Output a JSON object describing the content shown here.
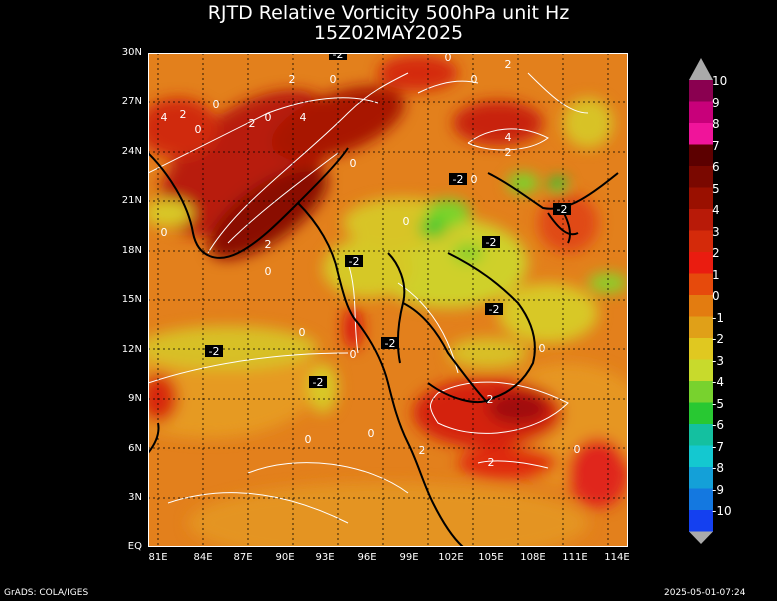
{
  "title_line1": "RJTD Relative Vorticity 500hPa unit Hz",
  "title_line2": "15Z02MAY2025",
  "footer_left": "GrADS: COLA/IGES",
  "footer_right": "2025-05-01-07:24",
  "lat_labels": [
    "30N",
    "27N",
    "24N",
    "21N",
    "18N",
    "15N",
    "12N",
    "9N",
    "6N",
    "3N",
    "EQ"
  ],
  "lon_labels": [
    "81E",
    "84E",
    "87E",
    "90E",
    "93E",
    "96E",
    "99E",
    "102E",
    "105E",
    "108E",
    "111E",
    "114E"
  ],
  "colorbar": {
    "levels": [
      "10",
      "9",
      "8",
      "7",
      "6",
      "5",
      "4",
      "3",
      "2",
      "1",
      "0",
      "-1",
      "-2",
      "-3",
      "-4",
      "-5",
      "-6",
      "-7",
      "-8",
      "-9",
      "-10"
    ],
    "colors": [
      "#8a0050",
      "#c8007a",
      "#f0149a",
      "#5c0000",
      "#7a0800",
      "#9a1000",
      "#b81a08",
      "#d42a0a",
      "#ea1c10",
      "#e64a0c",
      "#e37c10",
      "#e0a018",
      "#e0c820",
      "#c8da2c",
      "#78d22e",
      "#28c832",
      "#14c0a0",
      "#14c8d0",
      "#14a0d8",
      "#1478e0",
      "#1440f0"
    ]
  },
  "contour_labels": [
    {
      "text": "2"
    },
    {
      "text": "0"
    },
    {
      "text": "4"
    },
    {
      "text": "2"
    },
    {
      "text": "0"
    },
    {
      "text": "2"
    },
    {
      "text": "0"
    },
    {
      "text": "4"
    },
    {
      "text": "0"
    },
    {
      "text": "2"
    },
    {
      "text": "0"
    },
    {
      "text": "4"
    },
    {
      "text": "2"
    },
    {
      "text": "0"
    },
    {
      "text": "-2"
    },
    {
      "text": "0"
    },
    {
      "text": "-2"
    },
    {
      "text": "0"
    },
    {
      "text": "2"
    },
    {
      "text": "0"
    },
    {
      "text": "-2"
    },
    {
      "text": "0"
    },
    {
      "text": "-2"
    },
    {
      "text": "0"
    },
    {
      "text": "-2"
    },
    {
      "text": "0"
    },
    {
      "text": "-2"
    },
    {
      "text": "-2"
    },
    {
      "text": "-2"
    },
    {
      "text": "0"
    },
    {
      "text": "0"
    },
    {
      "text": "2"
    },
    {
      "text": "0"
    },
    {
      "text": "2"
    },
    {
      "text": "2"
    },
    {
      "text": "0"
    },
    {
      "text": "-2"
    },
    {
      "text": "0"
    }
  ]
}
